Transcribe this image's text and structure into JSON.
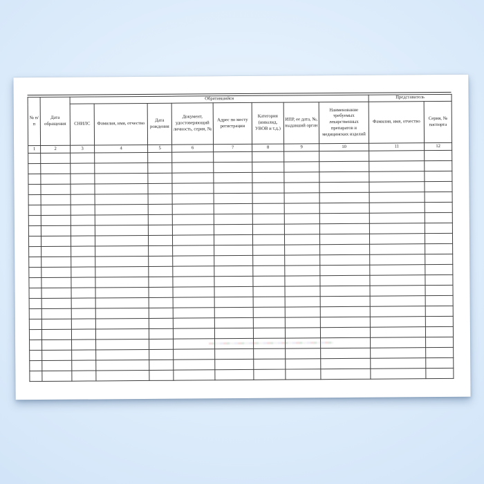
{
  "page": {
    "background_color": "#d2e5f8",
    "paper_color": "#ffffff",
    "line_color": "#3d3d3d"
  },
  "table": {
    "group_headers": [
      {
        "label": "Обратившийся",
        "span_columns": "3-10"
      },
      {
        "label": "Представитель",
        "span_columns": "11-12"
      }
    ],
    "columns": [
      {
        "num": "1",
        "label": "№ п/п"
      },
      {
        "num": "2",
        "label": "Дата обращения"
      },
      {
        "num": "3",
        "label": "СНИЛС"
      },
      {
        "num": "4",
        "label": "Фамилия, имя, отчество"
      },
      {
        "num": "5",
        "label": "Дата рождения"
      },
      {
        "num": "6",
        "label": "Документ, удостоверяющий личность, серия, №"
      },
      {
        "num": "7",
        "label": "Адрес по месту регистрации"
      },
      {
        "num": "8",
        "label": "Категория (инвалид, УВОВ и т.д.)"
      },
      {
        "num": "9",
        "label": "ИПР, ее дата, №, выдавший орган"
      },
      {
        "num": "10",
        "label": "Наименование требуемых лекарственных препаратов и медицинских изделий"
      },
      {
        "num": "11",
        "label": "Фамилия, имя, отчество"
      },
      {
        "num": "12",
        "label": "Серия, № паспорта"
      }
    ],
    "empty_rows": 22,
    "cells_filled": ""
  }
}
